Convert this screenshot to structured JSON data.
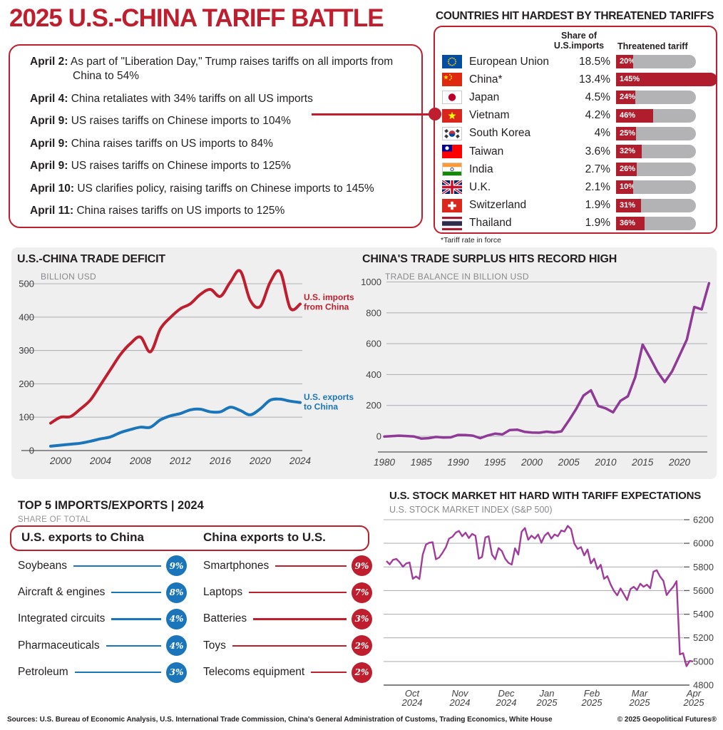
{
  "page_title": "2025 U.S.-CHINA TARIFF BATTLE",
  "timeline": {
    "events": [
      {
        "date": "April 2:",
        "text": "As part of \"Liberation Day,\" Trump raises tariffs on all imports from China to 54%"
      },
      {
        "date": "April 4:",
        "text": "China retaliates with 34% tariffs on all US imports"
      },
      {
        "date": "April 9:",
        "text": "US raises tariffs on Chinese imports to 104%"
      },
      {
        "date": "April 9:",
        "text": "China raises tariffs on US imports to 84%"
      },
      {
        "date": "April 9:",
        "text": "US raises tariffs on Chinese imports to 125%"
      },
      {
        "date": "April 10:",
        "text": "US clarifies policy, raising tariffs on Chinese imports to 145%"
      },
      {
        "date": "April 11:",
        "text": "China raises tariffs on US imports to 125%"
      }
    ]
  },
  "tariff_table": {
    "title": "COUNTRIES HIT HARDEST BY THREATENED TARIFFS",
    "share_header_line1": "Share of",
    "share_header_line2": "U.S.imports",
    "tariff_header": "Threatened tariff",
    "footnote": "*Tariff rate in force",
    "rows": [
      {
        "flag": "eu",
        "country": "European Union",
        "share": "18.5%",
        "tariff_pct": 20,
        "tariff_label": "20%"
      },
      {
        "flag": "cn",
        "country": "China*",
        "share": "13.4%",
        "tariff_pct": 145,
        "tariff_label": "145%"
      },
      {
        "flag": "jp",
        "country": "Japan",
        "share": "4.5%",
        "tariff_pct": 24,
        "tariff_label": "24%"
      },
      {
        "flag": "vn",
        "country": "Vietnam",
        "share": "4.2%",
        "tariff_pct": 46,
        "tariff_label": "46%"
      },
      {
        "flag": "kr",
        "country": "South Korea",
        "share": "4%",
        "tariff_pct": 25,
        "tariff_label": "25%"
      },
      {
        "flag": "tw",
        "country": "Taiwan",
        "share": "3.6%",
        "tariff_pct": 32,
        "tariff_label": "32%"
      },
      {
        "flag": "in",
        "country": "India",
        "share": "2.7%",
        "tariff_pct": 26,
        "tariff_label": "26%"
      },
      {
        "flag": "gb",
        "country": "U.K.",
        "share": "2.1%",
        "tariff_pct": 10,
        "tariff_label": "10%"
      },
      {
        "flag": "ch",
        "country": "Switzerland",
        "share": "1.9%",
        "tariff_pct": 31,
        "tariff_label": "31%"
      },
      {
        "flag": "th",
        "country": "Thailand",
        "share": "1.9%",
        "tariff_pct": 36,
        "tariff_label": "36%"
      }
    ]
  },
  "chart_data": [
    {
      "id": "trade_deficit",
      "type": "line",
      "title": "U.S.-CHINA TRADE DEFICIT",
      "subtitle": "BILLION USD",
      "ylabel": "Billion USD",
      "ylim": [
        0,
        500
      ],
      "yticks": [
        0,
        100,
        200,
        300,
        400,
        500
      ],
      "xticks": [
        2000,
        2004,
        2008,
        2012,
        2016,
        2020,
        2024
      ],
      "grid": true,
      "smooth": true,
      "years": [
        1999,
        2000,
        2001,
        2002,
        2003,
        2004,
        2005,
        2006,
        2007,
        2008,
        2009,
        2010,
        2011,
        2012,
        2013,
        2014,
        2015,
        2016,
        2017,
        2018,
        2019,
        2020,
        2021,
        2022,
        2023,
        2024
      ],
      "series": [
        {
          "name": "U.S. imports from China",
          "label_lines": [
            "U.S. imports",
            "from China"
          ],
          "color": "#be1e2d",
          "values": [
            82,
            100,
            102,
            125,
            152,
            197,
            243,
            288,
            321,
            340,
            296,
            365,
            399,
            425,
            440,
            468,
            483,
            462,
            505,
            538,
            450,
            432,
            505,
            536,
            427,
            439
          ]
        },
        {
          "name": "U.S. exports to China",
          "label_lines": [
            "U.S. exports",
            "to China"
          ],
          "color": "#1b75bb",
          "values": [
            13,
            16,
            19,
            22,
            28,
            35,
            41,
            54,
            63,
            70,
            70,
            92,
            104,
            111,
            122,
            124,
            116,
            116,
            130,
            120,
            107,
            125,
            151,
            154,
            148,
            144
          ]
        }
      ]
    },
    {
      "id": "china_surplus",
      "type": "line",
      "title": "CHINA'S TRADE SURPLUS HITS RECORD HIGH",
      "subtitle": "TRADE BALANCE IN BILLION USD",
      "ylabel": "Trade balance in billion USD",
      "ylim": [
        -60,
        1000
      ],
      "yticks": [
        0,
        200,
        400,
        600,
        800,
        1000
      ],
      "xticks": [
        1980,
        1985,
        1990,
        1995,
        2000,
        2005,
        2010,
        2015,
        2020
      ],
      "grid": true,
      "years": [
        1980,
        1981,
        1982,
        1983,
        1984,
        1985,
        1986,
        1987,
        1988,
        1989,
        1990,
        1991,
        1992,
        1993,
        1994,
        1995,
        1996,
        1997,
        1998,
        1999,
        2000,
        2001,
        2002,
        2003,
        2004,
        2005,
        2006,
        2007,
        2008,
        2009,
        2010,
        2011,
        2012,
        2013,
        2014,
        2015,
        2016,
        2017,
        2018,
        2019,
        2020,
        2021,
        2022,
        2023,
        2024
      ],
      "series": [
        {
          "name": "China trade balance",
          "color": "#8e3a96",
          "values": [
            -2,
            1,
            4,
            2,
            -1,
            -15,
            -12,
            -4,
            -8,
            -7,
            9,
            8,
            4,
            -12,
            5,
            17,
            12,
            40,
            43,
            29,
            24,
            23,
            30,
            25,
            32,
            102,
            177,
            264,
            298,
            196,
            181,
            155,
            230,
            259,
            383,
            594,
            510,
            420,
            351,
            421,
            524,
            627,
            838,
            822,
            992
          ]
        }
      ]
    },
    {
      "id": "sp500",
      "type": "line",
      "title": "U.S. STOCK MARKET HIT HARD WITH TARIFF EXPECTATIONS",
      "subtitle": "U.S. STOCK MARKET INDEX (S&P 500)",
      "ylim": [
        4800,
        6200
      ],
      "yticks": [
        4800,
        5000,
        5200,
        5400,
        5600,
        5800,
        6000,
        6200
      ],
      "grid": true,
      "xticks": [
        {
          "month": "Oct",
          "year": "2024"
        },
        {
          "month": "Nov",
          "year": "2024"
        },
        {
          "month": "Dec",
          "year": "2024"
        },
        {
          "month": "Jan",
          "year": "2025"
        },
        {
          "month": "Feb",
          "year": "2025"
        },
        {
          "month": "Mar",
          "year": "2025"
        },
        {
          "month": "Apr",
          "year": "2025"
        }
      ],
      "series": [
        {
          "name": "S&P 500",
          "color": "#a03c9a",
          "values": [
            5850,
            5822,
            5860,
            5868,
            5840,
            5802,
            5830,
            5838,
            5700,
            5720,
            5698,
            5905,
            5990,
            6005,
            6010,
            5865,
            5880,
            5920,
            5965,
            6040,
            6055,
            6090,
            6105,
            6060,
            6090,
            6045,
            6080,
            6065,
            5870,
            5885,
            6050,
            6060,
            5905,
            5865,
            5960,
            5935,
            5870,
            5835,
            5820,
            5958,
            5905,
            6098,
            6130,
            6030,
            6065,
            6040,
            6075,
            6005,
            6065,
            6090,
            6040,
            6075,
            6060,
            6108,
            6100,
            6148,
            6120,
            5998,
            5952,
            5968,
            5898,
            5948,
            5830,
            5870,
            5782,
            5818,
            5700,
            5722,
            5652,
            5598,
            5560,
            5618,
            5570,
            5520,
            5612,
            5632,
            5605,
            5658,
            5632,
            5650,
            5620,
            5760,
            5772,
            5718,
            5682,
            5562,
            5600,
            5632,
            5680,
            5060,
            5070,
            4960,
            5005,
            5000
          ]
        }
      ]
    }
  ],
  "top5": {
    "title": "TOP 5 IMPORTS/EXPORTS | 2024",
    "subtitle": "SHARE OF TOTAL",
    "columns": [
      {
        "header": "U.S. exports to China",
        "color": "#1b75bb",
        "items": [
          {
            "label": "Soybeans",
            "value": "9%"
          },
          {
            "label": "Aircraft & engines",
            "value": "8%"
          },
          {
            "label": "Integrated circuits",
            "value": "4%"
          },
          {
            "label": "Pharmaceuticals",
            "value": "4%"
          },
          {
            "label": "Petroleum",
            "value": "3%"
          }
        ]
      },
      {
        "header": "China exports to U.S.",
        "color": "#be1e2d",
        "items": [
          {
            "label": "Smartphones",
            "value": "9%"
          },
          {
            "label": "Laptops",
            "value": "7%"
          },
          {
            "label": "Batteries",
            "value": "3%"
          },
          {
            "label": "Toys",
            "value": "2%"
          },
          {
            "label": "Telecoms equipment",
            "value": "2%"
          }
        ]
      }
    ]
  },
  "footer": {
    "sources": "Sources: U.S. Bureau of Economic Analysis, U.S. International Trade Commission, China's General Administration of Customs, Trading Economics, White House",
    "copyright": "© 2025 Geopolitical Futures®"
  },
  "colors": {
    "accent_red": "#be1e2d",
    "bar_red": "#b01e2e",
    "bar_gray": "#b3b3b5",
    "blue": "#1b75bb",
    "purple": "#8e3a96",
    "stock_purple": "#a03c9a",
    "panel_gray": "#f0eff0"
  }
}
